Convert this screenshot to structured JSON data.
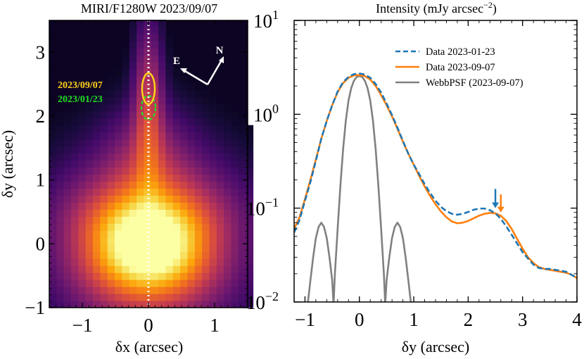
{
  "chart_data": [
    {
      "type": "heatmap",
      "title": "MIRI/F1280W 2023/09/07",
      "xlabel": "δx (arcsec)",
      "ylabel": "δy (arcsec)",
      "xlim": [
        -1.5,
        1.5
      ],
      "ylim": [
        -1.0,
        3.5
      ],
      "xticks": [
        "−1",
        "0",
        "1"
      ],
      "yticks": [
        "−1",
        "0",
        "1",
        "2",
        "3"
      ],
      "colormap": "inferno",
      "colors": {
        "background": "#0d0424",
        "dotted_line": "#ffffff"
      },
      "source_components": [
        {
          "label": "2023/09/07",
          "center": [
            0.0,
            2.5
          ],
          "color": "#ffd21a",
          "style": "solid"
        },
        {
          "label": "2023/01/23",
          "center": [
            0.0,
            2.25
          ],
          "color": "#22dd22",
          "style": "dashed"
        }
      ],
      "compass": {
        "north_label": "N",
        "east_label": "E"
      }
    },
    {
      "type": "line",
      "title": "Intensity (mJy arcsec⁻²)",
      "title_main": "Intensity (mJy arcsec",
      "title_sup": "−2",
      "title_close": ")",
      "xlabel": "δy (arcsec)",
      "xlim": [
        -1.2,
        4.0
      ],
      "ylim": [
        0.01,
        10
      ],
      "yscale": "log",
      "xticks": [
        "−1",
        "0",
        "1",
        "2",
        "3",
        "4"
      ],
      "yticks": [
        {
          "base": "10",
          "exp": "−2"
        },
        {
          "base": "10",
          "exp": "−1"
        },
        {
          "base": "10",
          "exp": "0"
        },
        {
          "base": "10",
          "exp": "1"
        }
      ],
      "legend_position": "top-right",
      "series": [
        {
          "name": "Data 2023-01-23",
          "color": "#1f77b4",
          "style": "dashed",
          "x": [
            -1.2,
            -1.1,
            -1.0,
            -0.9,
            -0.8,
            -0.7,
            -0.6,
            -0.5,
            -0.4,
            -0.3,
            -0.2,
            -0.1,
            0.0,
            0.1,
            0.2,
            0.3,
            0.4,
            0.5,
            0.6,
            0.7,
            0.8,
            0.9,
            1.0,
            1.1,
            1.2,
            1.3,
            1.4,
            1.5,
            1.6,
            1.7,
            1.8,
            1.9,
            2.0,
            2.1,
            2.2,
            2.3,
            2.4,
            2.5,
            2.6,
            2.7,
            2.8,
            2.9,
            3.0,
            3.1,
            3.2,
            3.3,
            3.4,
            3.5,
            3.6,
            3.7,
            3.8,
            3.9,
            4.0
          ],
          "y": [
            0.055,
            0.075,
            0.12,
            0.19,
            0.32,
            0.55,
            0.85,
            1.25,
            1.75,
            2.2,
            2.5,
            2.68,
            2.72,
            2.65,
            2.45,
            2.1,
            1.7,
            1.3,
            0.98,
            0.72,
            0.52,
            0.38,
            0.29,
            0.23,
            0.18,
            0.145,
            0.12,
            0.103,
            0.093,
            0.087,
            0.085,
            0.087,
            0.091,
            0.096,
            0.099,
            0.099,
            0.095,
            0.088,
            0.077,
            0.064,
            0.052,
            0.042,
            0.034,
            0.029,
            0.025,
            0.023,
            0.0225,
            0.0225,
            0.022,
            0.0215,
            0.021,
            0.0195,
            0.018
          ]
        },
        {
          "name": "Data 2023-09-07",
          "color": "#ff7f0e",
          "style": "solid",
          "x": [
            -1.2,
            -1.1,
            -1.0,
            -0.9,
            -0.8,
            -0.7,
            -0.6,
            -0.5,
            -0.4,
            -0.3,
            -0.2,
            -0.1,
            0.0,
            0.1,
            0.2,
            0.3,
            0.4,
            0.5,
            0.6,
            0.7,
            0.8,
            0.9,
            1.0,
            1.1,
            1.2,
            1.3,
            1.4,
            1.5,
            1.6,
            1.7,
            1.8,
            1.9,
            2.0,
            2.1,
            2.2,
            2.3,
            2.4,
            2.5,
            2.6,
            2.7,
            2.8,
            2.9,
            3.0,
            3.1,
            3.2,
            3.3,
            3.4,
            3.5,
            3.6,
            3.7,
            3.8,
            3.9,
            4.0
          ],
          "y": [
            0.06,
            0.08,
            0.125,
            0.2,
            0.33,
            0.55,
            0.85,
            1.25,
            1.72,
            2.15,
            2.45,
            2.6,
            2.62,
            2.55,
            2.35,
            2.0,
            1.6,
            1.25,
            0.95,
            0.7,
            0.51,
            0.38,
            0.29,
            0.22,
            0.17,
            0.135,
            0.11,
            0.092,
            0.08,
            0.072,
            0.069,
            0.07,
            0.073,
            0.078,
            0.083,
            0.087,
            0.089,
            0.088,
            0.083,
            0.073,
            0.06,
            0.047,
            0.037,
            0.03,
            0.026,
            0.0235,
            0.0225,
            0.022,
            0.0215,
            0.021,
            0.0205,
            0.0195,
            0.018
          ]
        },
        {
          "name": "WebbPSF (2023-09-07)",
          "color": "#808080",
          "style": "solid",
          "x": [
            -0.95,
            -0.9,
            -0.85,
            -0.8,
            -0.75,
            -0.7,
            -0.65,
            -0.6,
            -0.55,
            -0.5,
            -0.475,
            -0.45,
            -0.4,
            -0.35,
            -0.3,
            -0.25,
            -0.2,
            -0.15,
            -0.1,
            -0.05,
            0.0,
            0.05,
            0.1,
            0.15,
            0.2,
            0.25,
            0.3,
            0.35,
            0.4,
            0.45,
            0.475,
            0.5,
            0.55,
            0.6,
            0.65,
            0.7,
            0.75,
            0.8,
            0.85,
            0.9,
            0.95
          ],
          "y": [
            0.0095,
            0.017,
            0.03,
            0.048,
            0.063,
            0.07,
            0.063,
            0.048,
            0.03,
            0.017,
            0.0095,
            0.02,
            0.06,
            0.17,
            0.42,
            0.85,
            1.4,
            1.9,
            2.28,
            2.5,
            2.55,
            2.5,
            2.28,
            1.9,
            1.4,
            0.85,
            0.42,
            0.17,
            0.06,
            0.02,
            0.0095,
            0.017,
            0.03,
            0.048,
            0.063,
            0.07,
            0.063,
            0.048,
            0.03,
            0.017,
            0.0095
          ]
        }
      ],
      "arrows": [
        {
          "x": 2.5,
          "y_tip": 0.1,
          "y_tail": 0.16,
          "color": "#1f77b4"
        },
        {
          "x": 2.6,
          "y_tip": 0.09,
          "y_tail": 0.14,
          "color": "#ff7f0e"
        }
      ]
    }
  ]
}
